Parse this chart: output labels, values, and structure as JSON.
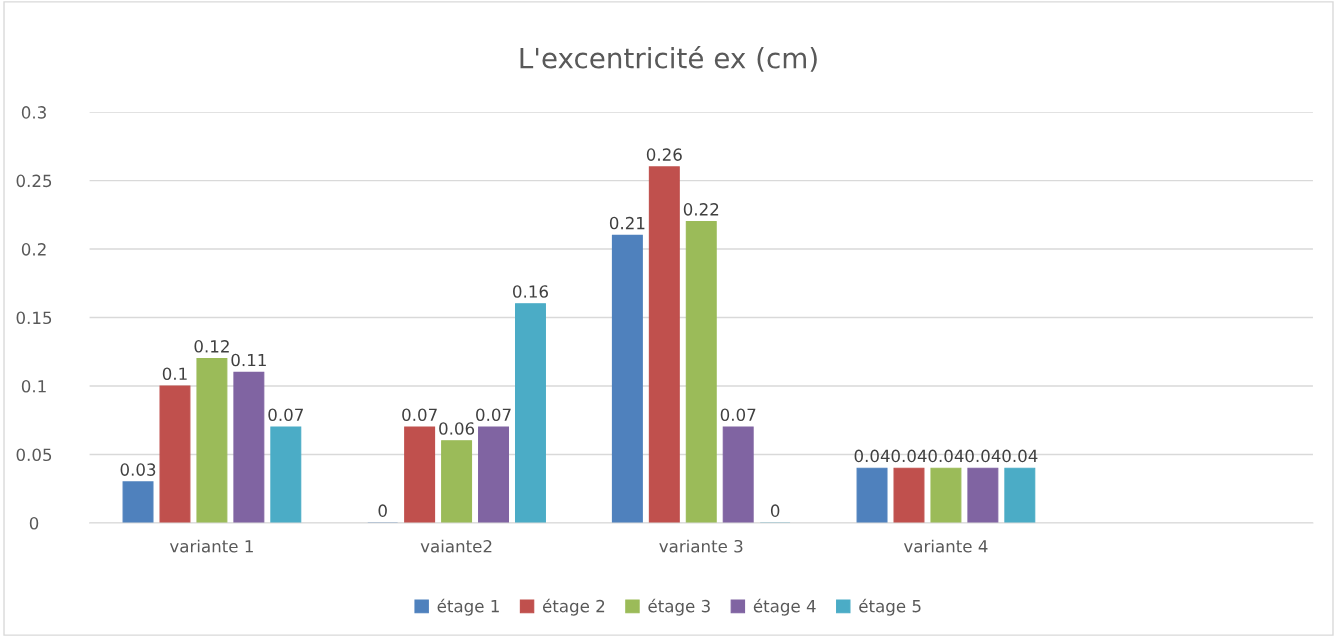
{
  "chart_data": {
    "type": "bar",
    "title": "L'excentricité ex (cm)",
    "categories": [
      "variante 1",
      "vaiante2",
      "variante 3",
      "variante 4",
      null
    ],
    "series": [
      {
        "name": "étage 1",
        "color": "#4f81bd",
        "values": [
          0.03,
          0,
          0.21,
          0.04,
          null
        ]
      },
      {
        "name": "étage 2",
        "color": "#c0504d",
        "values": [
          0.1,
          0.07,
          0.26,
          0.04,
          null
        ]
      },
      {
        "name": "étage 3",
        "color": "#9bbb59",
        "values": [
          0.12,
          0.06,
          0.22,
          0.04,
          null
        ]
      },
      {
        "name": "étage 4",
        "color": "#8064a2",
        "values": [
          0.11,
          0.07,
          0.07,
          0.04,
          null
        ]
      },
      {
        "name": "étage 5",
        "color": "#4bacc6",
        "values": [
          0.07,
          0.16,
          0,
          0.04,
          null
        ]
      }
    ],
    "ylim": [
      0,
      0.3
    ],
    "yticks": [
      0,
      0.05,
      0.1,
      0.15,
      0.2,
      0.25,
      0.3
    ],
    "grid": "y",
    "legend": "bottom",
    "data_labels": true
  }
}
